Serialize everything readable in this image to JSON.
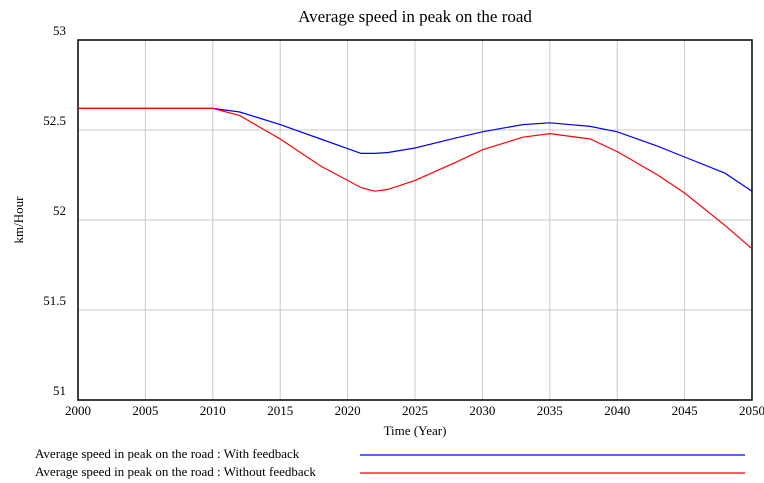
{
  "chart_data": {
    "type": "line",
    "title": "Average speed in peak on the road",
    "x_label": "Time (Year)",
    "y_label": "km/Hour",
    "x": [
      2000,
      2005,
      2010,
      2012,
      2015,
      2018,
      2021,
      2022,
      2023,
      2025,
      2028,
      2030,
      2033,
      2035,
      2038,
      2040,
      2043,
      2045,
      2048,
      2050
    ],
    "series": [
      {
        "name": "Average speed in peak on the road : With feedback",
        "color": "#0000ff",
        "values": [
          52.62,
          52.62,
          52.62,
          52.6,
          52.53,
          52.45,
          52.37,
          52.37,
          52.375,
          52.4,
          52.455,
          52.49,
          52.53,
          52.54,
          52.52,
          52.49,
          52.41,
          52.35,
          52.26,
          52.16
        ]
      },
      {
        "name": "Average speed in peak on the road : Without feedback",
        "color": "#ff0000",
        "values": [
          52.62,
          52.62,
          52.62,
          52.58,
          52.45,
          52.3,
          52.18,
          52.16,
          52.17,
          52.22,
          52.32,
          52.39,
          52.46,
          52.48,
          52.45,
          52.38,
          52.25,
          52.15,
          51.97,
          51.84
        ]
      }
    ],
    "xlim": [
      2000,
      2050
    ],
    "xticks": [
      2000,
      2005,
      2010,
      2015,
      2020,
      2025,
      2030,
      2035,
      2040,
      2045,
      2050
    ],
    "ylim": [
      51,
      53
    ],
    "yticks": [
      51,
      51.5,
      52,
      52.5,
      53
    ],
    "grid": true
  }
}
